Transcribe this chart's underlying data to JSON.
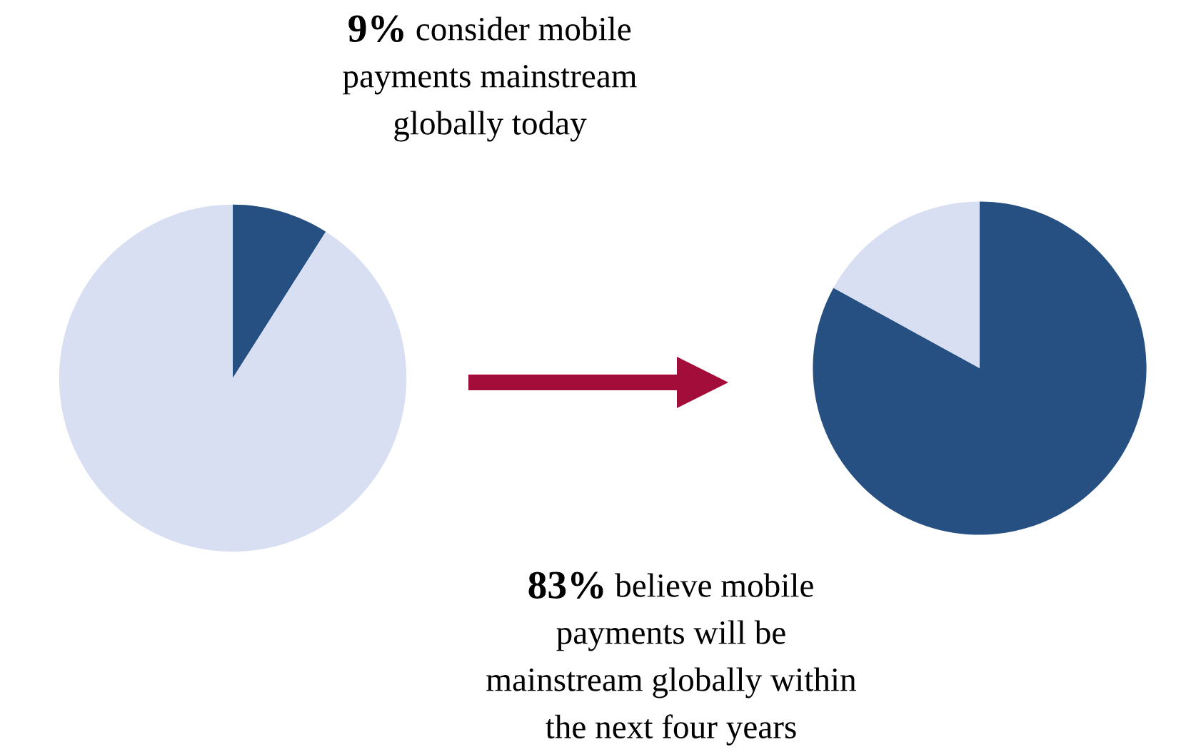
{
  "chart_data": [
    {
      "type": "pie",
      "categories": [
        null,
        null
      ],
      "values": [
        9,
        91
      ],
      "colors": [
        "#264f82",
        "#d9dff2"
      ],
      "annotations": [
        "9% consider mobile\npayments mainstream\nglobally today"
      ]
    },
    {
      "type": "pie",
      "categories": [
        null,
        null
      ],
      "values": [
        83,
        17
      ],
      "colors": [
        "#264f82",
        "#d9dff2"
      ],
      "annotations": [
        "83% believe mobile\npayments will be\nmainstream globally within\nthe next four years"
      ]
    }
  ]
}
